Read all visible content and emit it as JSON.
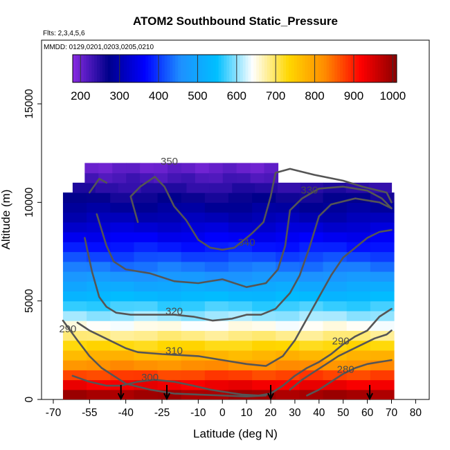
{
  "title": "ATOM2 Southbound Static_Pressure",
  "flights_note": "Flts: 2,3,4,5,6",
  "dates_note": "MMDD: 0129,0201,0203,0205,0210",
  "chart_data": {
    "type": "heatmap",
    "title": "ATOM2 Southbound Static_Pressure",
    "xlabel": "Latitude (deg N)",
    "ylabel": "Altitude (m)",
    "xlim": [
      -70,
      85
    ],
    "ylim": [
      0,
      17500
    ],
    "x_ticks": [
      -70,
      -55,
      -40,
      -25,
      -10,
      0,
      10,
      20,
      30,
      40,
      50,
      60,
      70,
      80
    ],
    "y_ticks": [
      0,
      5000,
      10000,
      15000
    ],
    "grid": false,
    "colorbar": {
      "ticks": [
        200,
        300,
        400,
        500,
        600,
        700,
        800,
        900,
        1000
      ],
      "range": [
        180,
        1010
      ],
      "colors": [
        "#8a2be2",
        "#00008b",
        "#0000ff",
        "#1e90ff",
        "#00bfff",
        "#ffffff",
        "#ffd700",
        "#ff8c00",
        "#ff0000",
        "#8b0000"
      ],
      "position": "top inside plot"
    },
    "pressure_field": {
      "altitude_m": [
        250,
        750,
        1250,
        1750,
        2250,
        2750,
        3250,
        3750,
        4250,
        4750,
        5250,
        5750,
        6250,
        6750,
        7250,
        7750,
        8250,
        8750,
        9250,
        9750,
        10250,
        10750,
        11250,
        11750
      ],
      "pressure_hPa": [
        990,
        930,
        875,
        820,
        775,
        730,
        685,
        645,
        605,
        570,
        535,
        505,
        470,
        440,
        410,
        380,
        355,
        330,
        305,
        285,
        265,
        245,
        225,
        205
      ]
    },
    "coverage": [
      {
        "alt_bottom": 0,
        "alt_top": 10500,
        "lat_start": -66,
        "lat_end": 71
      },
      {
        "alt_bottom": 10500,
        "alt_top": 11200,
        "lat_start": -62,
        "lat_end": 70
      },
      {
        "alt_bottom": 11200,
        "alt_top": 12000,
        "lat_start": -57,
        "lat_end": 23
      },
      {
        "alt_bottom": 12000,
        "alt_top": 12500,
        "lat_start": -52,
        "lat_end": -6
      }
    ],
    "contours": [
      {
        "label": "290",
        "label_at": [
          -64,
          3400
        ],
        "points": [
          [
            -66,
            4000
          ],
          [
            -60,
            3000
          ],
          [
            -55,
            2200
          ],
          [
            -50,
            1600
          ],
          [
            -45,
            1200
          ],
          [
            -40,
            800
          ],
          [
            -30,
            500
          ],
          [
            -20,
            300
          ],
          [
            -10,
            250
          ],
          [
            0,
            200
          ],
          [
            10,
            150
          ],
          [
            18,
            200
          ]
        ]
      },
      {
        "label": "300",
        "label_at": [
          -30,
          950
        ],
        "points": [
          [
            -62,
            1200
          ],
          [
            -55,
            900
          ],
          [
            -48,
            700
          ],
          [
            -42,
            700
          ],
          [
            -35,
            900
          ],
          [
            -28,
            1000
          ],
          [
            -20,
            900
          ],
          [
            -12,
            700
          ],
          [
            -5,
            500
          ],
          [
            0,
            400
          ],
          [
            8,
            250
          ],
          [
            15,
            200
          ],
          [
            20,
            300
          ],
          [
            25,
            700
          ],
          [
            30,
            1200
          ],
          [
            35,
            1600
          ],
          [
            40,
            1900
          ],
          [
            45,
            2300
          ],
          [
            50,
            2800
          ],
          [
            55,
            3200
          ],
          [
            60,
            3500
          ],
          [
            65,
            4200
          ],
          [
            70,
            4600
          ]
        ]
      },
      {
        "label": "290",
        "label_at": [
          49,
          2800
        ],
        "points": [
          [
            28,
            500
          ],
          [
            33,
            1000
          ],
          [
            38,
            1400
          ],
          [
            43,
            1800
          ],
          [
            48,
            2200
          ],
          [
            53,
            2500
          ],
          [
            58,
            2800
          ],
          [
            63,
            3100
          ],
          [
            68,
            3300
          ],
          [
            70,
            3500
          ]
        ]
      },
      {
        "label": "280",
        "label_at": [
          51,
          1350
        ],
        "points": [
          [
            35,
            200
          ],
          [
            40,
            500
          ],
          [
            45,
            900
          ],
          [
            50,
            1300
          ],
          [
            55,
            1600
          ],
          [
            60,
            1800
          ],
          [
            65,
            1900
          ],
          [
            70,
            2000
          ]
        ]
      },
      {
        "label": "310",
        "label_at": [
          -20,
          2300
        ],
        "points": [
          [
            -60,
            3900
          ],
          [
            -55,
            3500
          ],
          [
            -50,
            3200
          ],
          [
            -45,
            2900
          ],
          [
            -40,
            2600
          ],
          [
            -35,
            2400
          ],
          [
            -25,
            2300
          ],
          [
            -10,
            2200
          ],
          [
            0,
            2000
          ],
          [
            10,
            1800
          ],
          [
            18,
            1700
          ],
          [
            25,
            2200
          ],
          [
            30,
            3000
          ],
          [
            35,
            4100
          ],
          [
            40,
            5200
          ],
          [
            45,
            6300
          ],
          [
            50,
            7200
          ],
          [
            55,
            7700
          ],
          [
            60,
            8200
          ],
          [
            65,
            8500
          ],
          [
            70,
            8600
          ]
        ]
      },
      {
        "label": "320",
        "label_at": [
          -20,
          4300
        ],
        "points": [
          [
            -57,
            8200
          ],
          [
            -54,
            6500
          ],
          [
            -51,
            5200
          ],
          [
            -48,
            4700
          ],
          [
            -44,
            4400
          ],
          [
            -38,
            4300
          ],
          [
            -30,
            4300
          ],
          [
            -20,
            4300
          ],
          [
            -12,
            4200
          ],
          [
            -4,
            4000
          ],
          [
            4,
            4100
          ],
          [
            10,
            4300
          ],
          [
            16,
            4300
          ],
          [
            22,
            4600
          ],
          [
            28,
            5400
          ],
          [
            32,
            6300
          ],
          [
            36,
            7700
          ],
          [
            40,
            9300
          ],
          [
            45,
            9900
          ],
          [
            55,
            10200
          ],
          [
            65,
            10000
          ],
          [
            70,
            9700
          ]
        ]
      },
      {
        "label": "340",
        "label_at": [
          10,
          7800
        ],
        "points": [
          [
            -52,
            9400
          ],
          [
            -48,
            7800
          ],
          [
            -45,
            7000
          ],
          [
            -40,
            6600
          ],
          [
            -30,
            6400
          ],
          [
            -20,
            6000
          ],
          [
            -10,
            5900
          ],
          [
            0,
            6100
          ],
          [
            10,
            5700
          ],
          [
            18,
            5900
          ],
          [
            23,
            6600
          ],
          [
            26,
            7800
          ],
          [
            28,
            9600
          ],
          [
            33,
            10200
          ],
          [
            40,
            10700
          ],
          [
            50,
            10800
          ],
          [
            60,
            10600
          ],
          [
            66,
            10200
          ],
          [
            70,
            9700
          ]
        ]
      },
      {
        "label": "330",
        "label_at": [
          36,
          10450
        ],
        "points": [
          [
            -55,
            10500
          ],
          [
            -51,
            11200
          ],
          [
            -48,
            11000
          ]
        ]
      },
      {
        "label": "350",
        "label_at": [
          -22,
          11900
        ],
        "points": [
          [
            -35,
            9000
          ],
          [
            -38,
            10300
          ],
          [
            -34,
            10800
          ],
          [
            -28,
            11300
          ],
          [
            -24,
            10800
          ],
          [
            -20,
            9800
          ],
          [
            -15,
            9100
          ],
          [
            -10,
            8100
          ],
          [
            -5,
            7700
          ],
          [
            0,
            7600
          ],
          [
            5,
            7700
          ],
          [
            12,
            8400
          ],
          [
            17,
            9000
          ],
          [
            20,
            10300
          ],
          [
            22,
            11500
          ],
          [
            28,
            11700
          ],
          [
            38,
            11400
          ],
          [
            50,
            11100
          ],
          [
            58,
            10800
          ],
          [
            68,
            10500
          ],
          [
            70,
            10000
          ]
        ]
      }
    ],
    "arrows_lat": [
      -42,
      -23,
      20,
      61
    ]
  }
}
